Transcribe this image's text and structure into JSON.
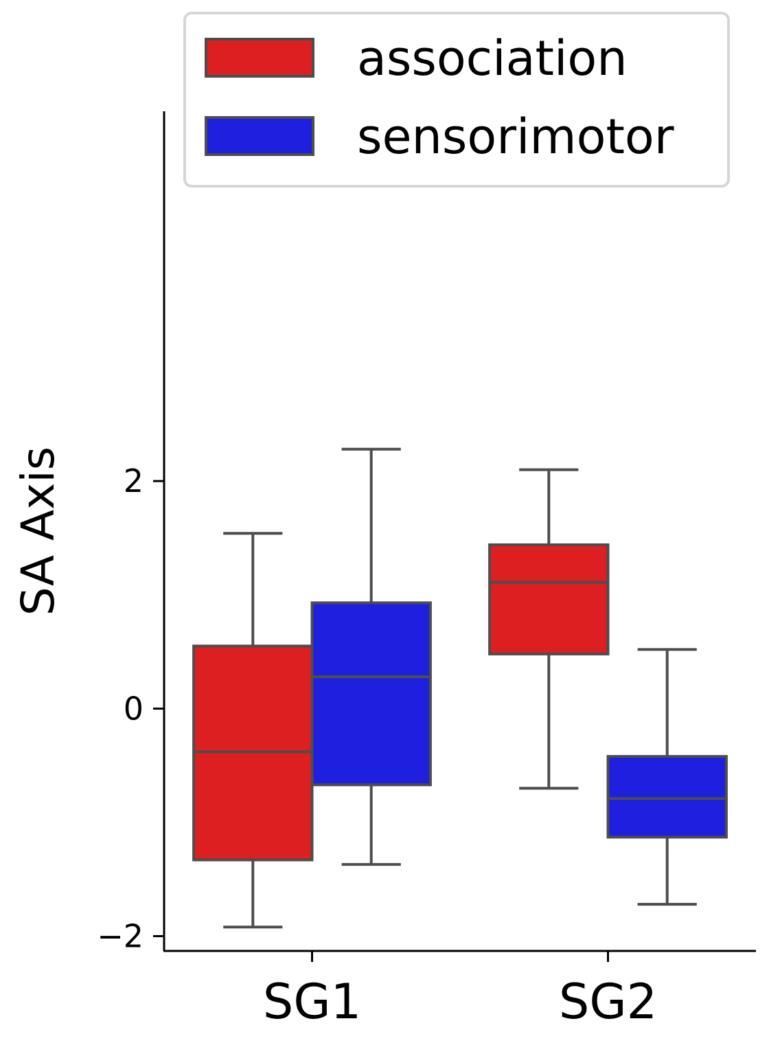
{
  "chart_data": {
    "type": "box",
    "categories": [
      "SG1",
      "SG2"
    ],
    "ylabel": "SA Axis",
    "xlabel": "",
    "ylim": [
      -2.13,
      5.25
    ],
    "yticks": [
      -2,
      0,
      2
    ],
    "ytick_labels": [
      "−2",
      "0",
      "2"
    ],
    "grid": false,
    "legend_position": "top",
    "series": [
      {
        "name": "association",
        "color": "#de1f21",
        "boxes": [
          {
            "whisker_low": -1.92,
            "q1": -1.33,
            "median": -0.38,
            "q3": 0.55,
            "whisker_high": 1.54
          },
          {
            "whisker_low": -0.7,
            "q1": 0.48,
            "median": 1.11,
            "q3": 1.44,
            "whisker_high": 2.1
          }
        ]
      },
      {
        "name": "sensorimotor",
        "color": "#1f1fe0",
        "boxes": [
          {
            "whisker_low": -1.37,
            "q1": -0.67,
            "median": 0.28,
            "q3": 0.93,
            "whisker_high": 2.28
          },
          {
            "whisker_low": -1.72,
            "q1": -1.13,
            "median": -0.79,
            "q3": -0.42,
            "whisker_high": 0.52
          }
        ]
      }
    ]
  }
}
